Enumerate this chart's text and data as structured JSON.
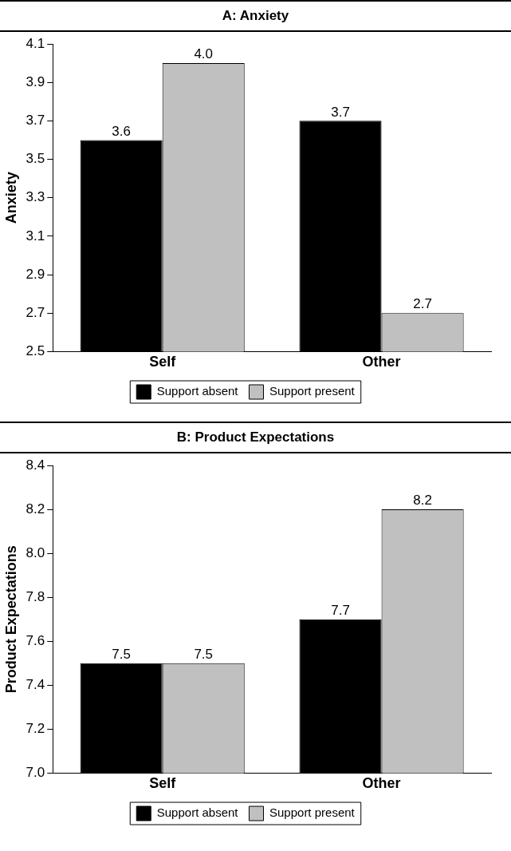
{
  "chart_data": [
    {
      "type": "bar",
      "title": "A: Anxiety",
      "ylabel": "Anxiety",
      "categories": [
        "Self",
        "Other"
      ],
      "series": [
        {
          "name": "Support absent",
          "color": "#000000",
          "values": [
            3.6,
            3.7
          ],
          "value_labels": [
            "3.6",
            "3.7"
          ]
        },
        {
          "name": "Support present",
          "color": "#c0c0c0",
          "values": [
            4.0,
            2.7
          ],
          "value_labels": [
            "4.0",
            "2.7"
          ]
        }
      ],
      "ylim": [
        2.5,
        4.1
      ],
      "yticks": [
        2.5,
        2.7,
        2.9,
        3.1,
        3.3,
        3.5,
        3.7,
        3.9,
        4.1
      ],
      "grid": false,
      "legend": "bottom"
    },
    {
      "type": "bar",
      "title": "B: Product Expectations",
      "ylabel": "Product Expectations",
      "categories": [
        "Self",
        "Other"
      ],
      "series": [
        {
          "name": "Support absent",
          "color": "#000000",
          "values": [
            7.5,
            7.7
          ],
          "value_labels": [
            "7.5",
            "7.7"
          ]
        },
        {
          "name": "Support present",
          "color": "#c0c0c0",
          "values": [
            7.5,
            8.2
          ],
          "value_labels": [
            "7.5",
            "8.2"
          ]
        }
      ],
      "ylim": [
        7.0,
        8.4
      ],
      "yticks": [
        {
          "value": 7.0,
          "label": "7.0"
        },
        7.2,
        7.4,
        7.6,
        7.8,
        {
          "value": 8.0,
          "label": "8.0"
        },
        8.2,
        8.4
      ],
      "grid": false,
      "legend": "bottom"
    }
  ]
}
